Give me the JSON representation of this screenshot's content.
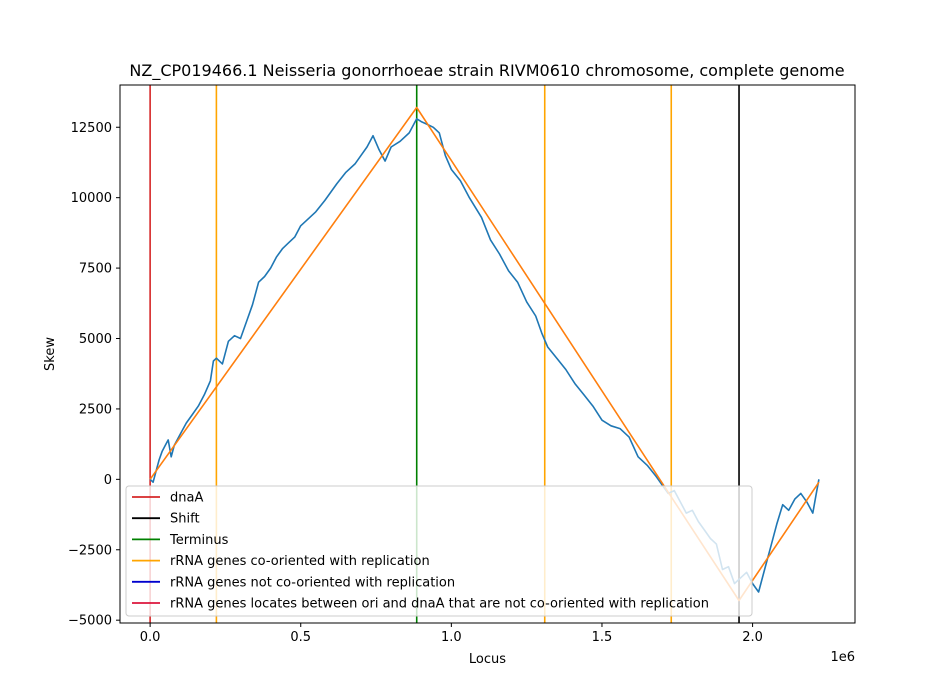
{
  "chart_data": {
    "type": "line",
    "title": "NZ_CP019466.1 Neisseria gonorrhoeae strain RIVM0610 chromosome, complete genome",
    "xlabel": "Locus",
    "ylabel": "Skew",
    "x_offset_label": "1e6",
    "xlim": [
      -0.1,
      2.34
    ],
    "ylim": [
      -5100,
      14000
    ],
    "x_ticks": [
      0.0,
      0.5,
      1.0,
      1.5,
      2.0
    ],
    "x_tick_labels": [
      "0.0",
      "0.5",
      "1.0",
      "1.5",
      "2.0"
    ],
    "y_ticks": [
      -5000,
      -2500,
      0,
      2500,
      5000,
      7500,
      10000,
      12500
    ],
    "y_tick_labels": [
      "−5000",
      "−2500",
      "0",
      "2500",
      "5000",
      "7500",
      "10000",
      "12500"
    ],
    "grid": false,
    "legend_position": "lower-left",
    "series": [
      {
        "name": "",
        "color": "#1f77b4",
        "points": [
          [
            0.0,
            0
          ],
          [
            0.01,
            -100
          ],
          [
            0.02,
            300
          ],
          [
            0.03,
            700
          ],
          [
            0.04,
            1000
          ],
          [
            0.05,
            1200
          ],
          [
            0.06,
            1400
          ],
          [
            0.07,
            800
          ],
          [
            0.08,
            1200
          ],
          [
            0.1,
            1600
          ],
          [
            0.12,
            2000
          ],
          [
            0.14,
            2300
          ],
          [
            0.16,
            2600
          ],
          [
            0.18,
            3000
          ],
          [
            0.2,
            3500
          ],
          [
            0.21,
            4200
          ],
          [
            0.22,
            4300
          ],
          [
            0.24,
            4100
          ],
          [
            0.26,
            4900
          ],
          [
            0.28,
            5100
          ],
          [
            0.3,
            5000
          ],
          [
            0.32,
            5600
          ],
          [
            0.34,
            6200
          ],
          [
            0.36,
            7000
          ],
          [
            0.38,
            7200
          ],
          [
            0.4,
            7500
          ],
          [
            0.42,
            7900
          ],
          [
            0.44,
            8200
          ],
          [
            0.46,
            8400
          ],
          [
            0.48,
            8600
          ],
          [
            0.5,
            9000
          ],
          [
            0.52,
            9200
          ],
          [
            0.55,
            9500
          ],
          [
            0.58,
            9900
          ],
          [
            0.6,
            10200
          ],
          [
            0.62,
            10500
          ],
          [
            0.65,
            10900
          ],
          [
            0.68,
            11200
          ],
          [
            0.7,
            11500
          ],
          [
            0.72,
            11800
          ],
          [
            0.74,
            12200
          ],
          [
            0.76,
            11700
          ],
          [
            0.78,
            11300
          ],
          [
            0.8,
            11800
          ],
          [
            0.83,
            12000
          ],
          [
            0.86,
            12300
          ],
          [
            0.885,
            12800
          ],
          [
            0.9,
            12700
          ],
          [
            0.92,
            12600
          ],
          [
            0.94,
            12500
          ],
          [
            0.96,
            12300
          ],
          [
            0.98,
            11500
          ],
          [
            1.0,
            11000
          ],
          [
            1.03,
            10600
          ],
          [
            1.06,
            10000
          ],
          [
            1.1,
            9300
          ],
          [
            1.13,
            8500
          ],
          [
            1.16,
            8000
          ],
          [
            1.19,
            7400
          ],
          [
            1.22,
            7000
          ],
          [
            1.25,
            6300
          ],
          [
            1.28,
            5800
          ],
          [
            1.3,
            5200
          ],
          [
            1.32,
            4700
          ],
          [
            1.35,
            4300
          ],
          [
            1.38,
            3900
          ],
          [
            1.41,
            3400
          ],
          [
            1.44,
            3000
          ],
          [
            1.47,
            2600
          ],
          [
            1.5,
            2100
          ],
          [
            1.53,
            1900
          ],
          [
            1.56,
            1800
          ],
          [
            1.59,
            1500
          ],
          [
            1.62,
            800
          ],
          [
            1.65,
            500
          ],
          [
            1.68,
            100
          ],
          [
            1.7,
            -200
          ],
          [
            1.72,
            -500
          ],
          [
            1.74,
            -400
          ],
          [
            1.76,
            -800
          ],
          [
            1.78,
            -1200
          ],
          [
            1.8,
            -1100
          ],
          [
            1.82,
            -1500
          ],
          [
            1.84,
            -1800
          ],
          [
            1.86,
            -2100
          ],
          [
            1.88,
            -2300
          ],
          [
            1.9,
            -3200
          ],
          [
            1.92,
            -3100
          ],
          [
            1.94,
            -3700
          ],
          [
            1.96,
            -3500
          ],
          [
            1.98,
            -3300
          ],
          [
            2.0,
            -3700
          ],
          [
            2.02,
            -4000
          ],
          [
            2.04,
            -3200
          ],
          [
            2.06,
            -2400
          ],
          [
            2.08,
            -1600
          ],
          [
            2.1,
            -900
          ],
          [
            2.12,
            -1100
          ],
          [
            2.14,
            -700
          ],
          [
            2.16,
            -500
          ],
          [
            2.18,
            -800
          ],
          [
            2.2,
            -1200
          ],
          [
            2.21,
            -600
          ],
          [
            2.22,
            0
          ]
        ]
      },
      {
        "name": "",
        "color": "#ff7f0e",
        "points": [
          [
            0.0,
            0
          ],
          [
            0.885,
            13200
          ],
          [
            1.955,
            -4300
          ],
          [
            2.22,
            -100
          ]
        ]
      }
    ],
    "vertical_lines": [
      {
        "x": 0.0,
        "color": "#d62728",
        "legend_index": 0
      },
      {
        "x": 0.22,
        "color": "#ffa500",
        "legend_index": 3
      },
      {
        "x": 0.885,
        "color": "#008000",
        "legend_index": 2
      },
      {
        "x": 1.31,
        "color": "#ffa500",
        "legend_index": 3
      },
      {
        "x": 1.73,
        "color": "#ffa500",
        "legend_index": 3
      },
      {
        "x": 1.955,
        "color": "#000000",
        "legend_index": 1
      }
    ],
    "legend": [
      {
        "label": "dnaA",
        "color": "#d62728"
      },
      {
        "label": "Shift",
        "color": "#000000"
      },
      {
        "label": "Terminus",
        "color": "#008000"
      },
      {
        "label": "rRNA genes co-oriented with replication",
        "color": "#ffa500"
      },
      {
        "label": "rRNA genes not co-oriented with replication",
        "color": "#0000cd"
      },
      {
        "label": "rRNA genes locates between ori and dnaA that are not co-oriented with replication",
        "color": "#dc143c"
      }
    ]
  }
}
